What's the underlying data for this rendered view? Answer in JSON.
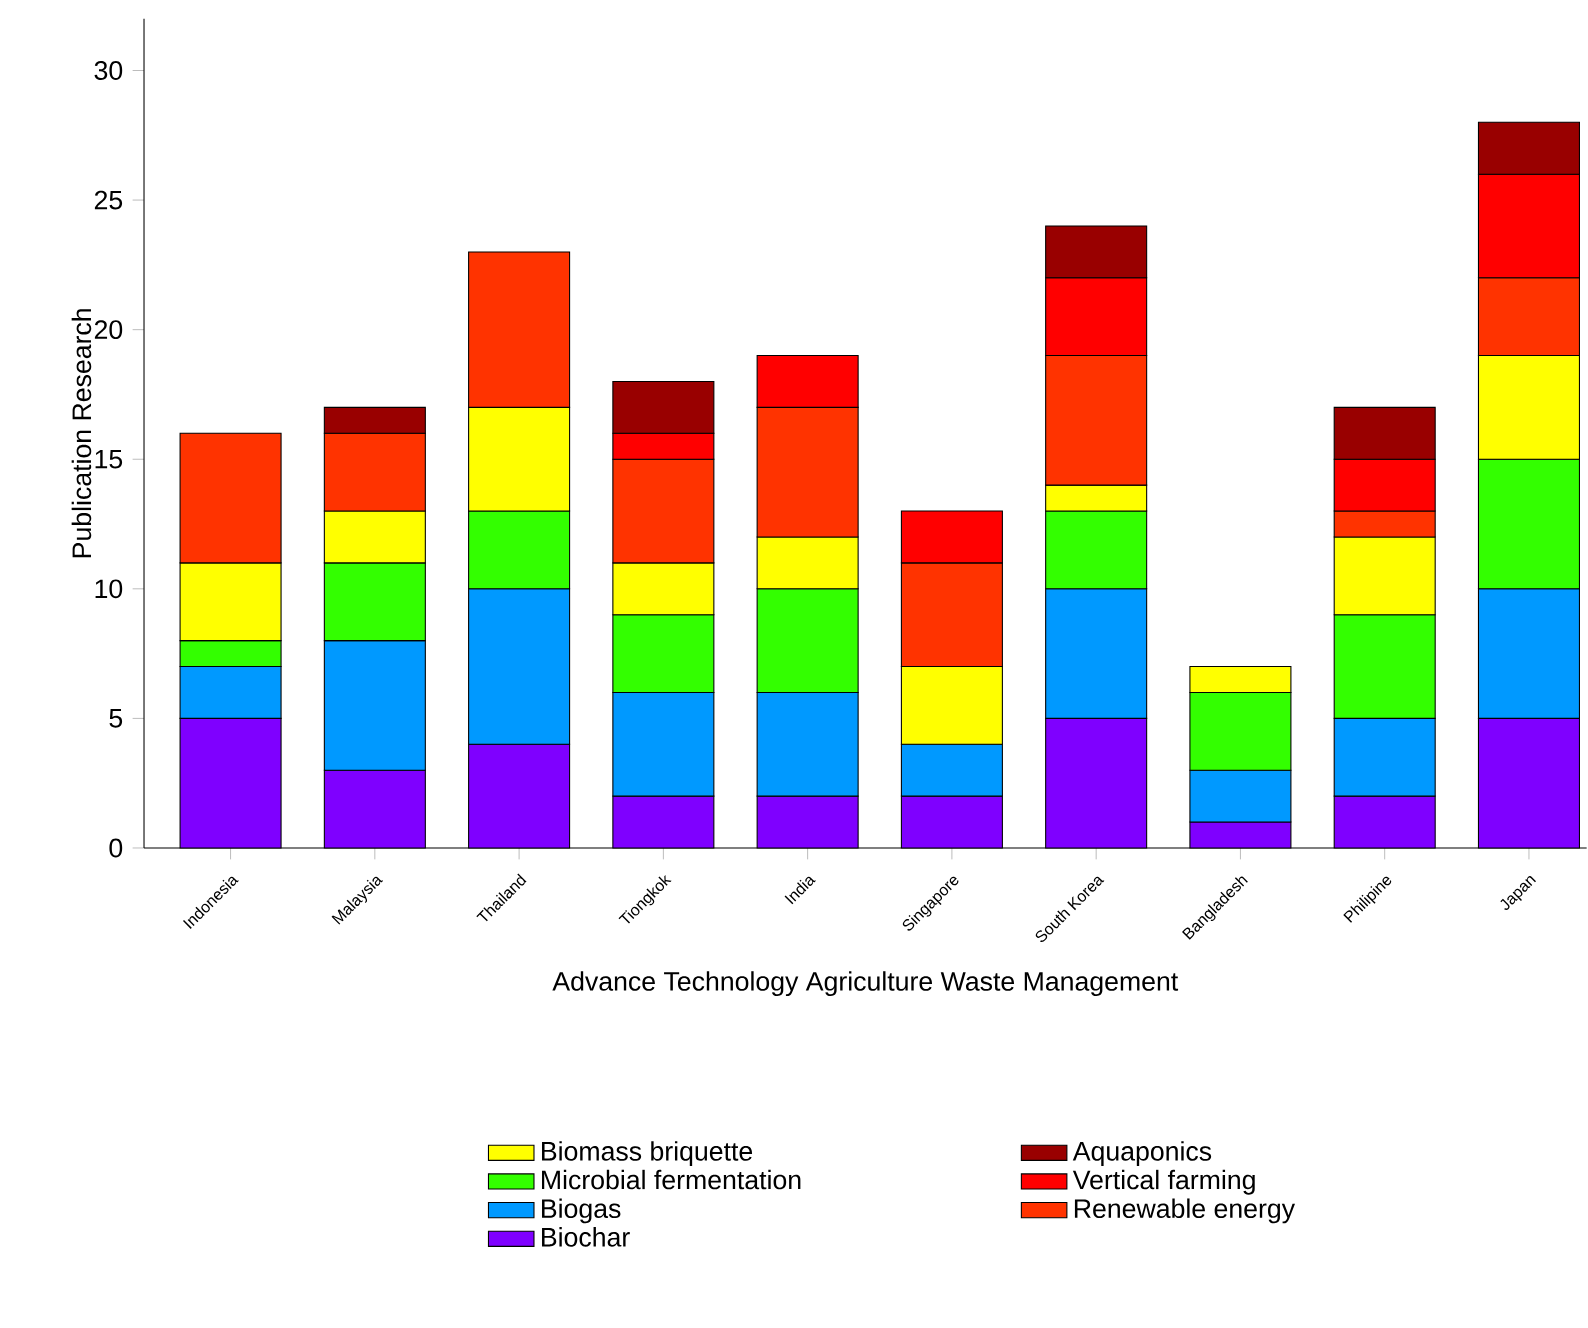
{
  "chart_data": {
    "type": "bar",
    "stacked": true,
    "legend": "bottom",
    "xlabel": "Advance Technology Agriculture Waste Management",
    "ylabel": "Publication Research",
    "categories": [
      "Indonesia",
      "Malaysia",
      "Thailand",
      "Tiongkok",
      "India",
      "Singapore",
      "South Korea",
      "Bangladesh",
      "Philipine",
      "Japan"
    ],
    "ylim": [
      0,
      32
    ],
    "yticks": [
      0,
      5,
      10,
      15,
      20,
      25,
      30
    ],
    "series": [
      {
        "name": "Biochar",
        "color": "#7f00ff",
        "values": [
          5,
          3,
          4,
          2,
          2,
          2,
          5,
          1,
          2,
          5
        ]
      },
      {
        "name": "Biogas",
        "color": "#0099ff",
        "values": [
          2,
          5,
          6,
          4,
          4,
          2,
          5,
          2,
          3,
          5
        ]
      },
      {
        "name": "Microbial fermentation",
        "color": "#33ff00",
        "values": [
          1,
          3,
          3,
          3,
          4,
          0,
          3,
          3,
          4,
          5
        ]
      },
      {
        "name": "Biomass briquette",
        "color": "#ffff00",
        "values": [
          3,
          2,
          4,
          2,
          2,
          3,
          1,
          1,
          3,
          4
        ]
      },
      {
        "name": "Renewable energy",
        "color": "#ff3300",
        "values": [
          5,
          3,
          6,
          4,
          5,
          4,
          5,
          0,
          1,
          3
        ]
      },
      {
        "name": "Vertical farming",
        "color": "#ff0000",
        "values": [
          0,
          0,
          0,
          1,
          2,
          2,
          3,
          0,
          2,
          4
        ]
      },
      {
        "name": "Aquaponics",
        "color": "#990000",
        "values": [
          0,
          1,
          0,
          2,
          0,
          0,
          2,
          0,
          2,
          2
        ]
      }
    ]
  }
}
